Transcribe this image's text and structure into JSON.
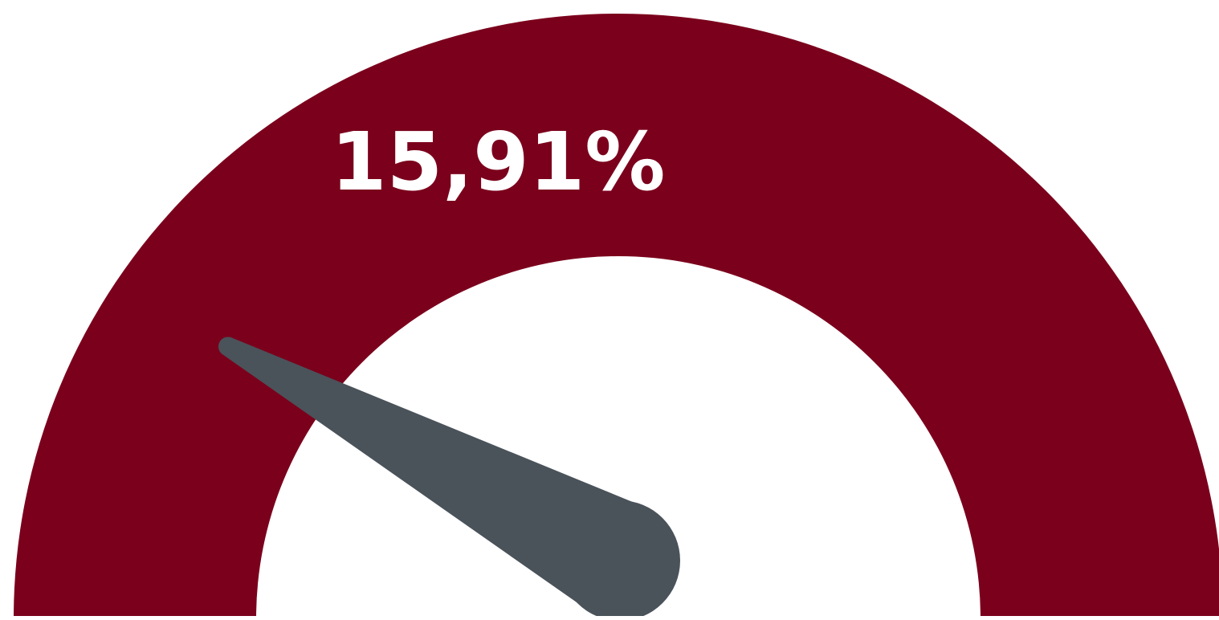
{
  "chart_data": {
    "type": "gauge",
    "value_label": "15,91%",
    "value_percent": 15.91,
    "range": [
      0,
      100
    ],
    "colors": {
      "band": "#7b001c",
      "needle": "#4a525a",
      "value_text": "#ffffff",
      "background": "#ffffff"
    }
  }
}
